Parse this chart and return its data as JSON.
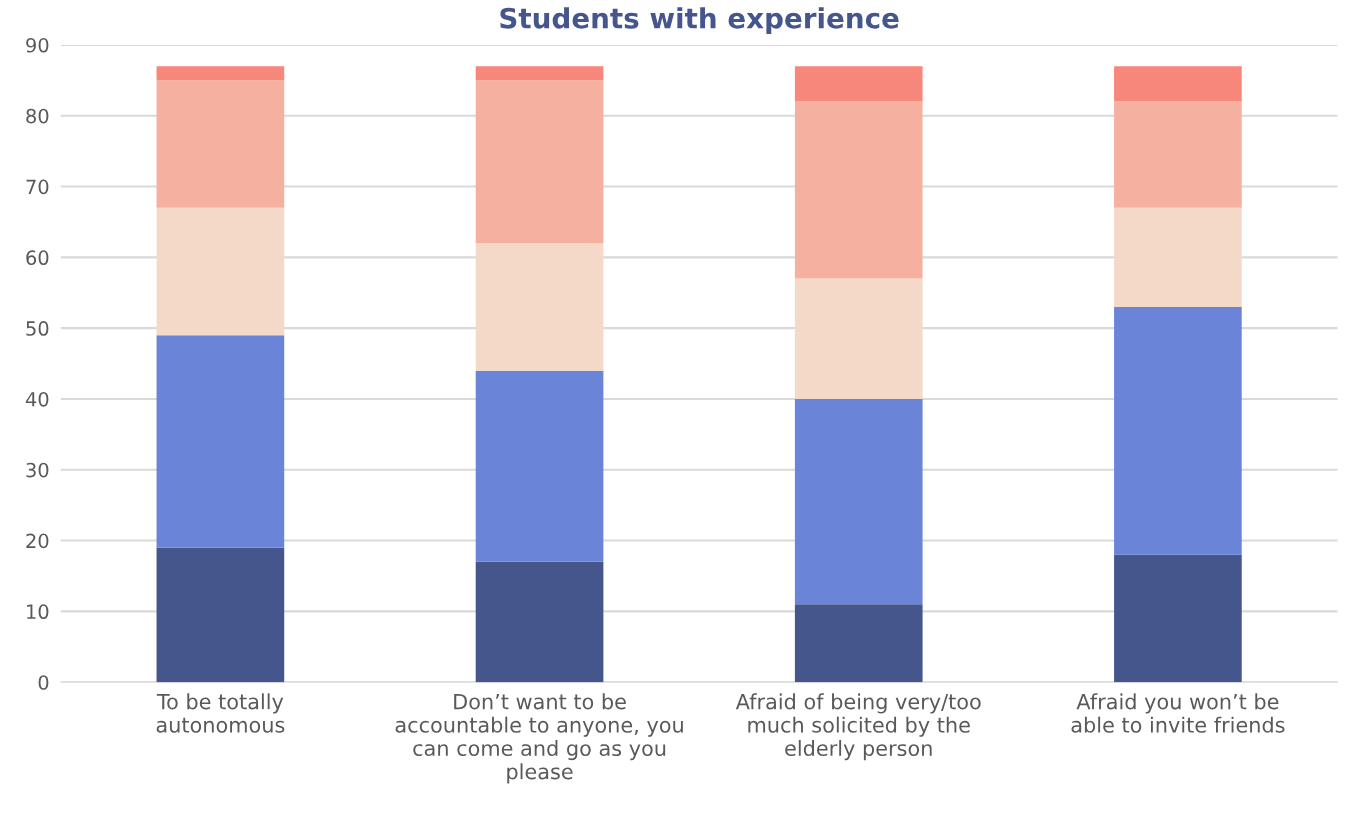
{
  "chart_data": {
    "type": "bar",
    "title": "Students with experience",
    "stacked": true,
    "categories": [
      "To be totally\nautonomous",
      "Don’t want to be\naccountable to anyone, you\ncan come and go as you\nplease",
      "Afraid of being very/too\nmuch solicited by the\nelderly person",
      "Afraid you won’t be\nable to invite friends"
    ],
    "series": [
      {
        "color": "#44568c",
        "values": [
          19,
          17,
          11,
          18
        ]
      },
      {
        "color": "#6a85d8",
        "values": [
          30,
          27,
          29,
          35
        ]
      },
      {
        "color": "#f5d9c8",
        "values": [
          18,
          18,
          17,
          14
        ]
      },
      {
        "color": "#f5b0a0",
        "values": [
          18,
          23,
          25,
          15
        ]
      },
      {
        "color": "#f7877a",
        "values": [
          2,
          2,
          5,
          5
        ]
      }
    ],
    "ylim": [
      0,
      90
    ],
    "yticks": [
      0,
      10,
      20,
      30,
      40,
      50,
      60,
      70,
      80,
      90
    ],
    "grid": "y"
  }
}
